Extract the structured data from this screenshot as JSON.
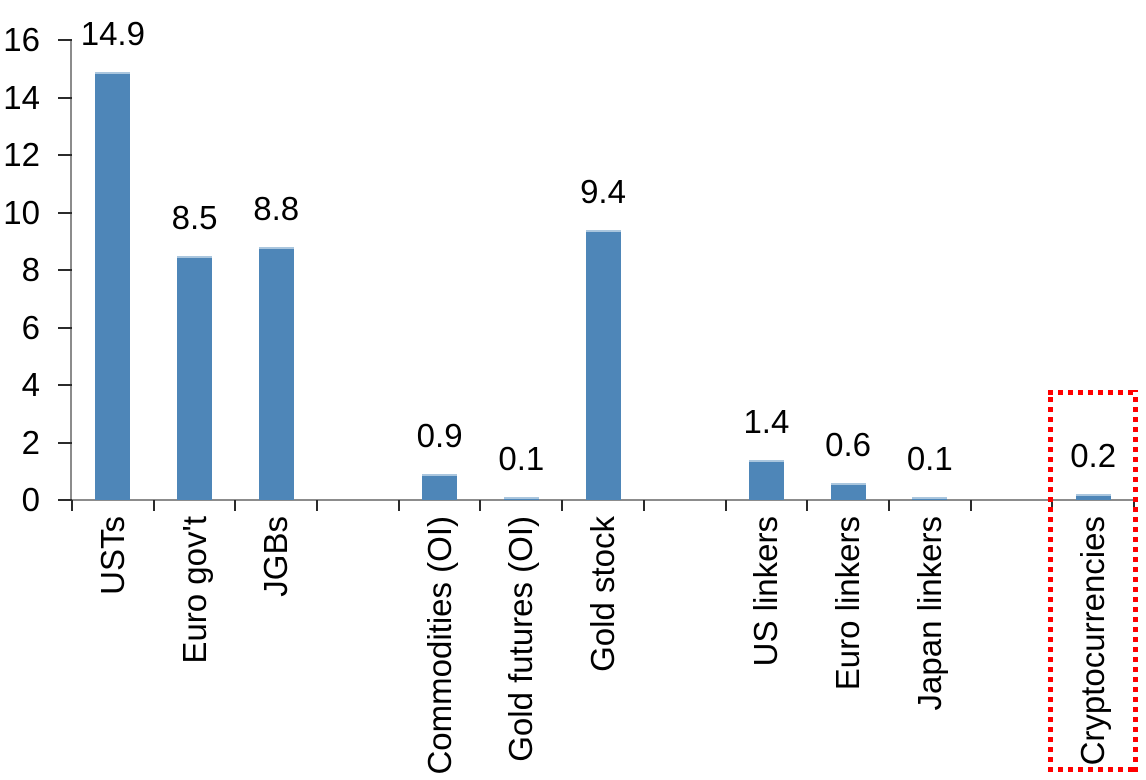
{
  "chart_data": {
    "type": "bar",
    "title": "",
    "categories": [
      "USTs",
      "Euro gov't",
      "JGBs",
      "",
      "Commodities (OI)",
      "Gold futures (OI)",
      "Gold stock",
      "",
      "US linkers",
      "Euro linkers",
      "Japan linkers",
      "",
      "Cryptocurrencies"
    ],
    "values": [
      14.9,
      8.5,
      8.8,
      null,
      0.9,
      0.1,
      9.4,
      null,
      1.4,
      0.6,
      0.1,
      null,
      0.2
    ],
    "data_labels": [
      "14.9",
      "8.5",
      "8.8",
      "",
      "0.9",
      "0.1",
      "9.4",
      "",
      "1.4",
      "0.6",
      "0.1",
      "",
      "0.2"
    ],
    "xlabel": "",
    "ylabel": "",
    "ylim": [
      0,
      16
    ],
    "yticks": [
      0,
      2,
      4,
      6,
      8,
      10,
      12,
      14,
      16
    ],
    "grid": false,
    "legend": null,
    "colors": {
      "bar_fill": "#4e86b8",
      "bar_top_highlight": "#aac6de",
      "axis_line": "#8c8c8c",
      "tick_mark": "#2b2b2b",
      "text": "#000000",
      "highlight_box": "#ff0000"
    },
    "highlight": {
      "category": "Cryptocurrencies",
      "style": "red-dotted-rectangle"
    }
  }
}
